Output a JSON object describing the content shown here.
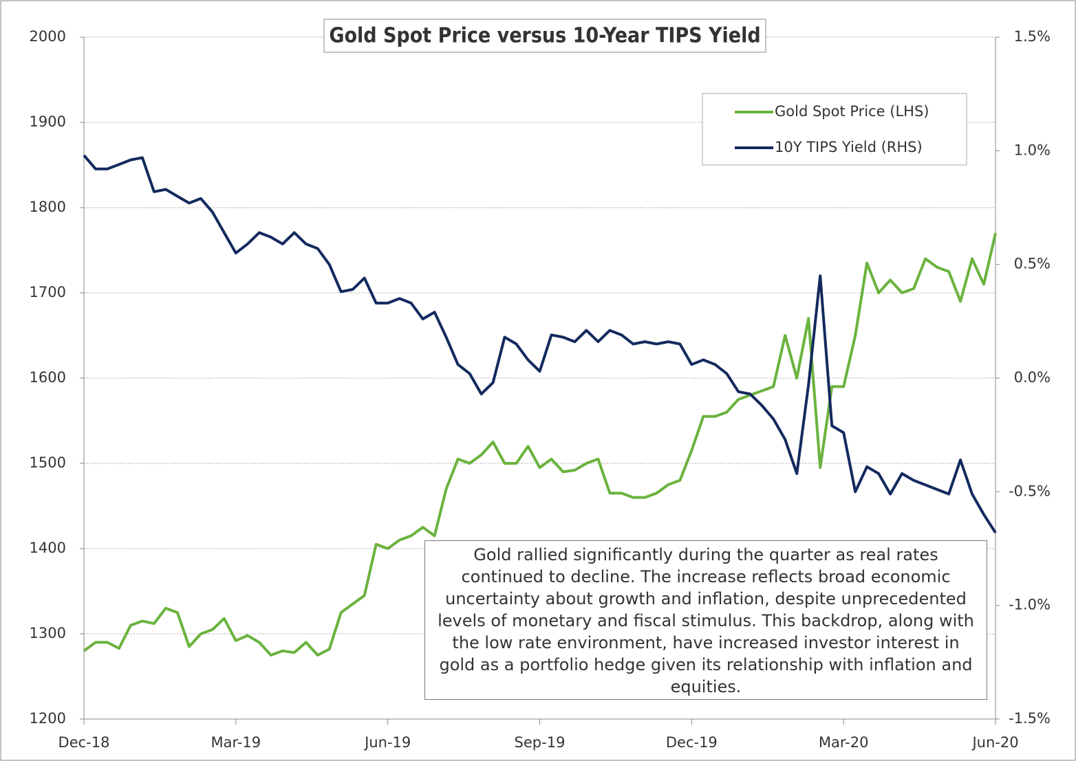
{
  "chart_data": {
    "type": "line",
    "title": "Gold Spot Price versus 10-Year TIPS Yield",
    "annotation": "Gold rallied significantly during the quarter as real rates continued to decline. The increase reflects broad economic uncertainty about growth and inflation, despite unprecedented levels of monetary and fiscal stimulus. This backdrop, along with the low rate environment, have increased investor interest in gold as a portfolio hedge given its relationship with inflation and equities.",
    "categories": [
      "Dec-18",
      null,
      null,
      null,
      null,
      null,
      null,
      null,
      null,
      null,
      null,
      null,
      null,
      "Mar-19",
      null,
      null,
      null,
      null,
      null,
      null,
      null,
      null,
      null,
      null,
      null,
      null,
      "Jun-19",
      null,
      null,
      null,
      null,
      null,
      null,
      null,
      null,
      null,
      null,
      null,
      null,
      "Sep-19",
      null,
      null,
      null,
      null,
      null,
      null,
      null,
      null,
      null,
      null,
      null,
      null,
      "Dec-19",
      null,
      null,
      null,
      null,
      null,
      null,
      null,
      null,
      null,
      null,
      null,
      null,
      "Mar-20",
      null,
      null,
      null,
      null,
      null,
      null,
      null,
      null,
      null,
      null,
      null,
      null,
      "Jun-20"
    ],
    "series": [
      {
        "name": "Gold Spot Price (LHS)",
        "color": "#6ab33e",
        "axis": "y",
        "values": [
          1280,
          1290,
          1290,
          1283,
          1310,
          1315,
          1312,
          1330,
          1325,
          1285,
          1300,
          1305,
          1318,
          1292,
          1298,
          1290,
          1275,
          1280,
          1278,
          1290,
          1275,
          1282,
          1325,
          1335,
          1345,
          1405,
          1400,
          1410,
          1415,
          1425,
          1415,
          1470,
          1505,
          1500,
          1510,
          1525,
          1500,
          1500,
          1520,
          1495,
          1505,
          1490,
          1492,
          1500,
          1505,
          1465,
          1465,
          1460,
          1460,
          1465,
          1475,
          1480,
          1515,
          1555,
          1555,
          1560,
          1575,
          1580,
          1585,
          1590,
          1650,
          1600,
          1670,
          1495,
          1590,
          1590,
          1650,
          1735,
          1700,
          1715,
          1700,
          1705,
          1740,
          1730,
          1725,
          1690,
          1740,
          1710,
          1770
        ]
      },
      {
        "name": "10Y TIPS Yield (RHS)",
        "color": "#132a5e",
        "axis": "y2",
        "values": [
          0.98,
          0.92,
          0.92,
          0.94,
          0.96,
          0.97,
          0.82,
          0.83,
          0.8,
          0.77,
          0.79,
          0.73,
          0.64,
          0.55,
          0.59,
          0.64,
          0.62,
          0.59,
          0.64,
          0.59,
          0.57,
          0.5,
          0.38,
          0.39,
          0.44,
          0.33,
          0.33,
          0.35,
          0.33,
          0.26,
          0.29,
          0.18,
          0.06,
          0.02,
          -0.07,
          -0.02,
          0.18,
          0.15,
          0.08,
          0.03,
          0.19,
          0.18,
          0.16,
          0.21,
          0.16,
          0.21,
          0.19,
          0.15,
          0.16,
          0.15,
          0.16,
          0.15,
          0.06,
          0.08,
          0.06,
          0.02,
          -0.06,
          -0.07,
          -0.12,
          -0.18,
          -0.27,
          -0.42,
          -0.03,
          0.45,
          -0.21,
          -0.24,
          -0.5,
          -0.39,
          -0.42,
          -0.51,
          -0.42,
          -0.45,
          -0.47,
          -0.49,
          -0.51,
          -0.36,
          -0.51,
          -0.6,
          -0.68
        ]
      }
    ],
    "ylim": [
      1200,
      2000
    ],
    "yticks": [
      1200,
      1300,
      1400,
      1500,
      1600,
      1700,
      1800,
      1900,
      2000
    ],
    "y2lim": [
      -1.5,
      1.5
    ],
    "y2ticks": [
      {
        "value": -1.5,
        "label": "-1.5%"
      },
      {
        "value": -1.0,
        "label": "-1.0%"
      },
      {
        "value": -0.5,
        "label": "-0.5%"
      },
      {
        "value": 0,
        "label": "0.0%"
      },
      {
        "value": 0.5,
        "label": "0.5%"
      },
      {
        "value": 1.0,
        "label": "1.0%"
      },
      {
        "value": 1.5,
        "label": "1.5%"
      }
    ],
    "grid": true,
    "legend": "upper right"
  }
}
